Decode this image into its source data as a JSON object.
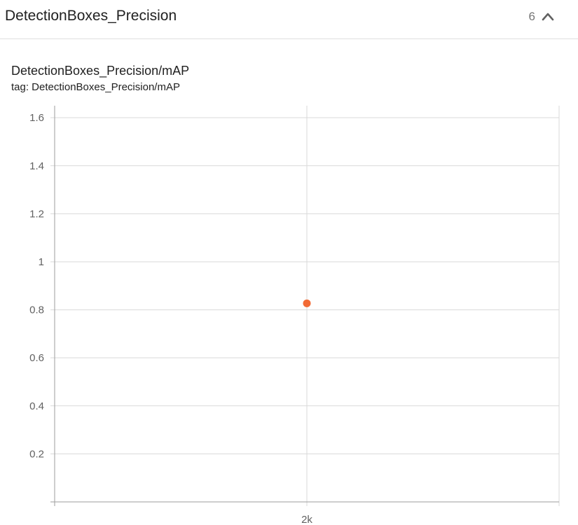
{
  "header": {
    "title": "DetectionBoxes_Precision",
    "count": "6",
    "toggle_icon": "chevron-up-icon"
  },
  "card": {
    "title": "DetectionBoxes_Precision/mAP",
    "tag": "tag: DetectionBoxes_Precision/mAP"
  },
  "colors": {
    "point": "#f26b35",
    "grid": "#d9d9d9",
    "axis": "#9e9e9e"
  },
  "chart_data": {
    "type": "scatter",
    "xlabel": "",
    "ylabel": "",
    "grid": true,
    "ylim": [
      0,
      1.65
    ],
    "y_ticks": [
      {
        "value": 0.2,
        "label": "0.2"
      },
      {
        "value": 0.4,
        "label": "0.4"
      },
      {
        "value": 0.6,
        "label": "0.6"
      },
      {
        "value": 0.8,
        "label": "0.8"
      },
      {
        "value": 1.0,
        "label": "1"
      },
      {
        "value": 1.2,
        "label": "1.2"
      },
      {
        "value": 1.4,
        "label": "1.4"
      },
      {
        "value": 1.6,
        "label": "1.6"
      }
    ],
    "x_ticks": [
      {
        "value": 2000,
        "label": "2k"
      }
    ],
    "xlim": [
      1000,
      3000
    ],
    "series": [
      {
        "points": [
          {
            "x": 2000,
            "y": 0.827
          }
        ]
      }
    ]
  }
}
